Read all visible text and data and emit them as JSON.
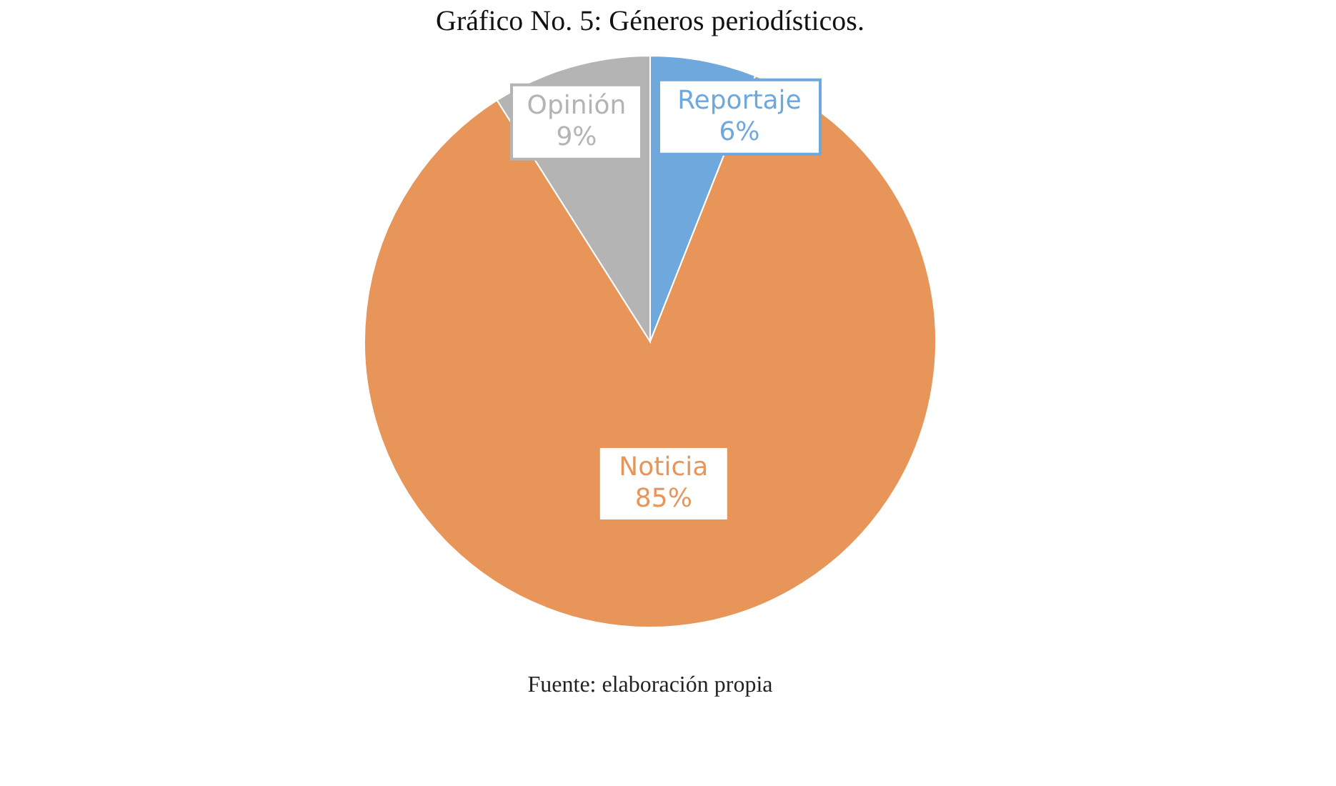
{
  "chart_data": {
    "type": "pie",
    "title": "Gráfico No. 5: Géneros periodísticos.",
    "categories": [
      "Reportaje",
      "Noticia",
      "Opinión"
    ],
    "values": [
      6,
      85,
      9
    ],
    "value_labels": [
      "6%",
      "85%",
      "9%"
    ],
    "colors": [
      "#6fa8dc",
      "#e8955a",
      "#b4b4b4"
    ],
    "legend": false,
    "annotations": [
      "Fuente: elaboración propia"
    ]
  }
}
